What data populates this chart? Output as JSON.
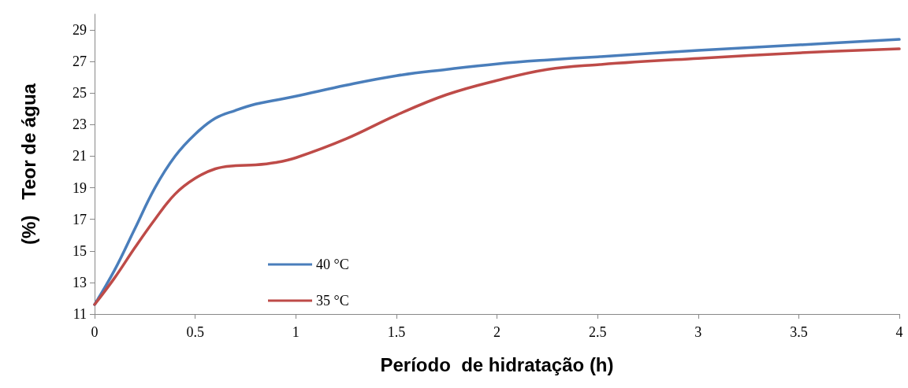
{
  "chart_data": {
    "type": "line",
    "xlabel": "Período  de hidratação (h)",
    "ylabel": "(%)   Teor de água",
    "x": [
      0,
      0.1,
      0.2,
      0.3,
      0.4,
      0.5,
      0.6,
      0.7,
      0.8,
      0.9,
      1,
      1.25,
      1.5,
      1.75,
      2,
      2.25,
      2.5,
      3,
      3.5,
      4
    ],
    "series": [
      {
        "name": "40 °C",
        "color": "#4a7ebb",
        "values": [
          11.6,
          13.8,
          16.4,
          19,
          21,
          22.4,
          23.4,
          23.9,
          24.3,
          24.55,
          24.8,
          25.5,
          26.1,
          26.5,
          26.85,
          27.1,
          27.3,
          27.7,
          28.05,
          28.4
        ]
      },
      {
        "name": "35 °C",
        "color": "#be4b48",
        "values": [
          11.6,
          13.3,
          15.2,
          17,
          18.6,
          19.6,
          20.2,
          20.4,
          20.45,
          20.6,
          20.9,
          22.1,
          23.6,
          24.9,
          25.8,
          26.5,
          26.8,
          27.2,
          27.55,
          27.8
        ]
      }
    ],
    "xlim": [
      0,
      4
    ],
    "xticks": [
      0,
      0.5,
      1,
      1.5,
      2,
      2.5,
      3,
      3.5,
      4
    ],
    "ylim": [
      11,
      30
    ],
    "yticks": [
      11,
      13,
      15,
      17,
      19,
      21,
      23,
      25,
      27,
      29
    ],
    "grid": false,
    "legend": "bottom left",
    "marker": "none",
    "line_style": "solid"
  }
}
